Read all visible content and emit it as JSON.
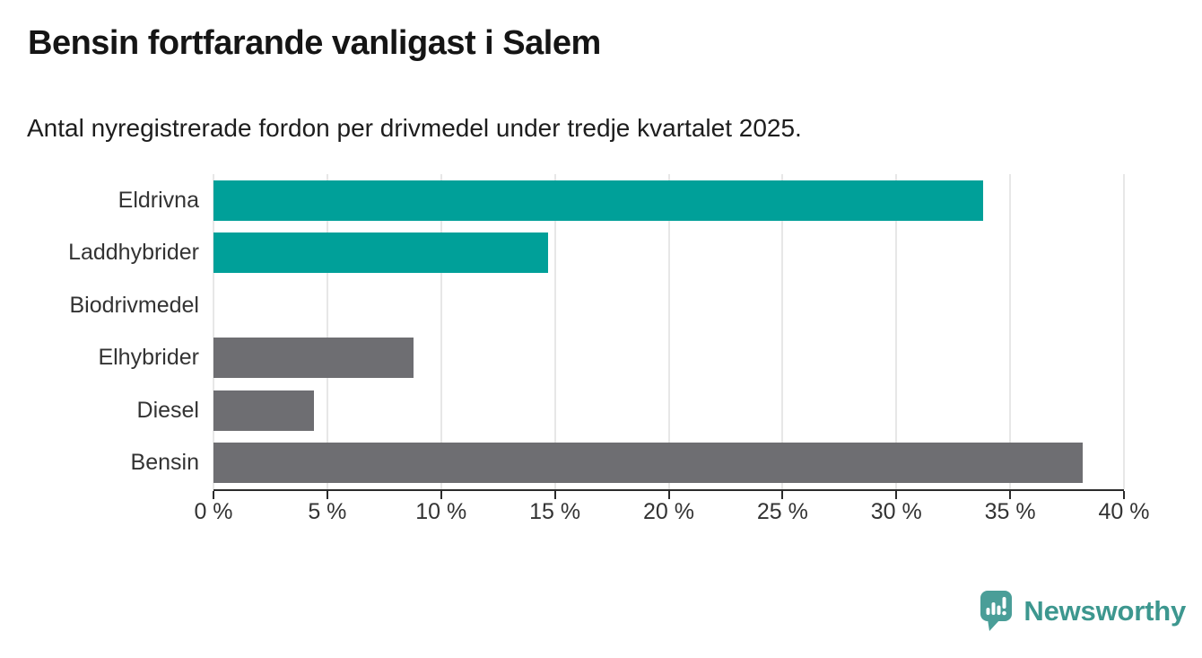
{
  "header": {
    "title": "Bensin fortfarande vanligast i Salem",
    "subtitle": "Antal nyregistrerade fordon per drivmedel under tredje kvartalet 2025."
  },
  "chart_data": {
    "type": "bar",
    "orientation": "horizontal",
    "title": "Bensin fortfarande vanligast i Salem",
    "subtitle": "Antal nyregistrerade fordon per drivmedel under tredje kvartalet 2025.",
    "categories": [
      "Eldrivna",
      "Laddhybrider",
      "Biodrivmedel",
      "Elhybrider",
      "Diesel",
      "Bensin"
    ],
    "values": [
      33.8,
      14.7,
      0,
      8.8,
      4.4,
      38.2
    ],
    "unit": "%",
    "bar_colors": [
      "#00a099",
      "#00a099",
      "#6e6e72",
      "#6e6e72",
      "#6e6e72",
      "#6e6e72"
    ],
    "colors": {
      "teal": "#00a099",
      "gray": "#6e6e72",
      "gridline": "#e7e7e7",
      "axis": "#2b2b2b"
    },
    "xlim": [
      0,
      40
    ],
    "x_tick_labels": [
      "0 %",
      "5 %",
      "10 %",
      "15 %",
      "20 %",
      "25 %",
      "30 %",
      "35 %",
      "40 %"
    ],
    "x_tick_values": [
      0,
      5,
      10,
      15,
      20,
      25,
      30,
      35,
      40
    ],
    "grid": true,
    "legend": false
  },
  "footer": {
    "brand": "Newsworthy",
    "brand_color": "#3d978f",
    "logo_icon": "bar-chart-speech-bubble-icon"
  }
}
